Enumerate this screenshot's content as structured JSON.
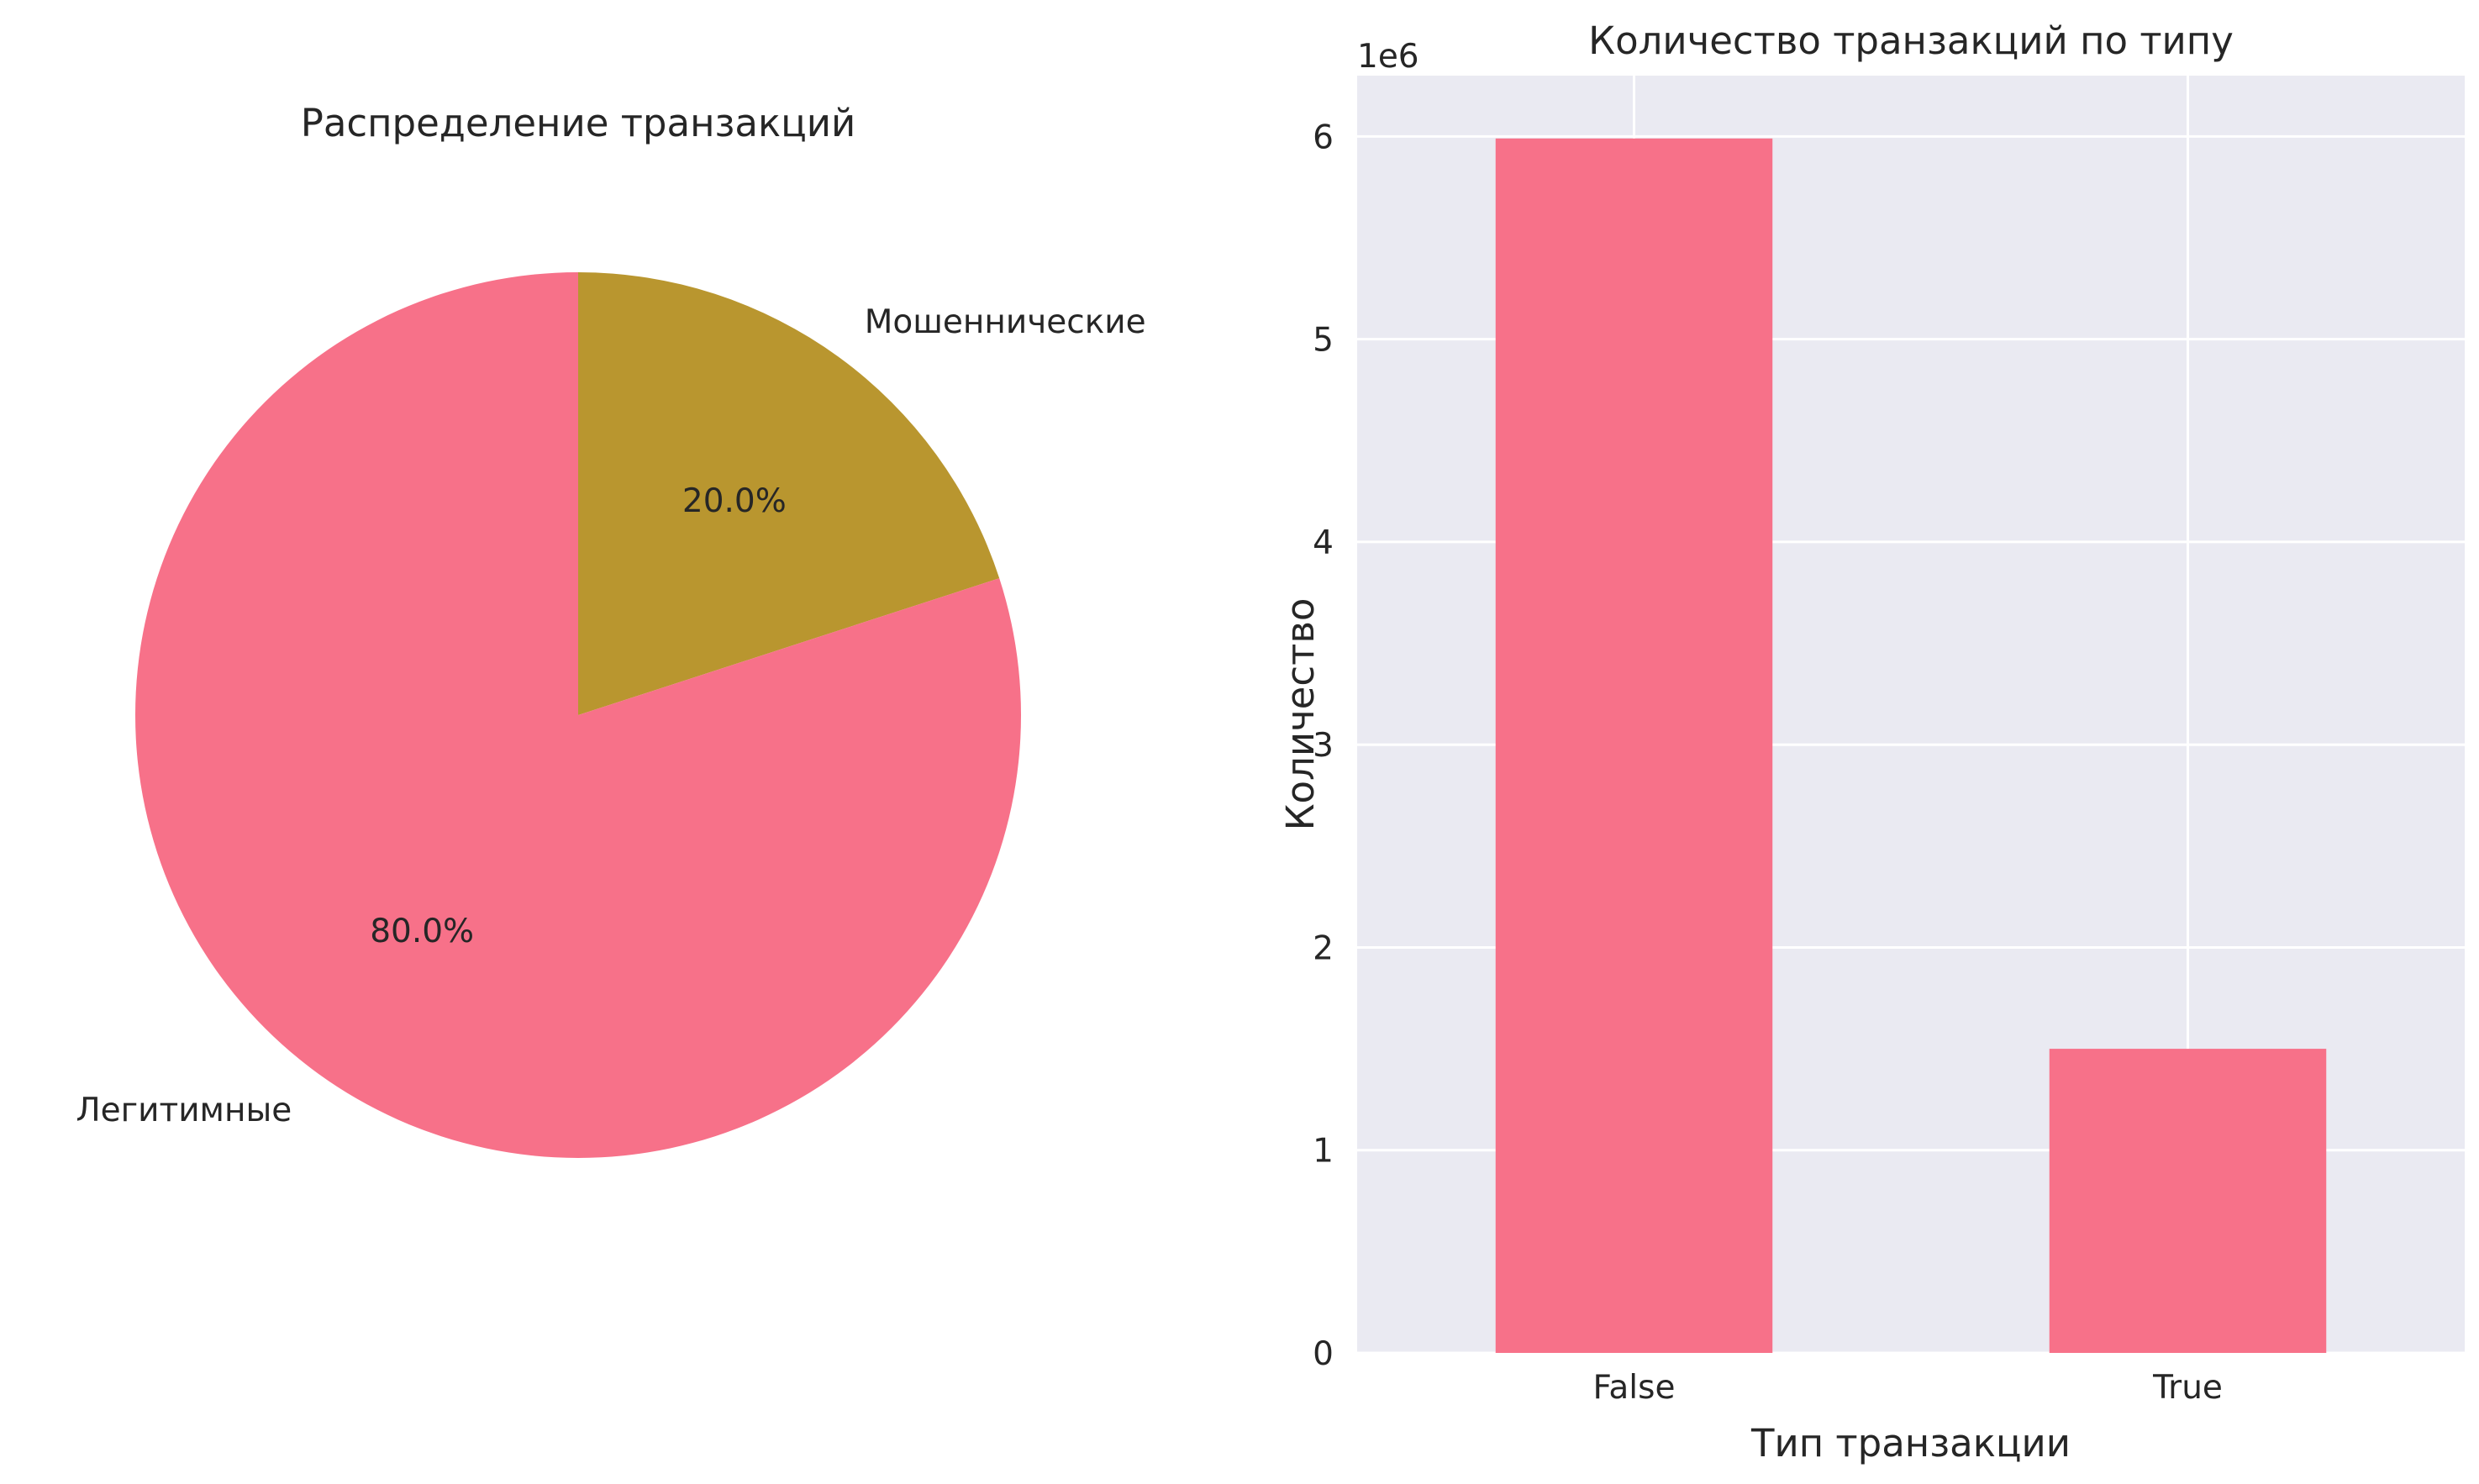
{
  "chart_data": [
    {
      "type": "pie",
      "title": "Распределение транзакций",
      "start_angle": 90,
      "direction": "clockwise",
      "slices": [
        {
          "label": "Мошеннические",
          "value": 20.0,
          "pct_label": "20.0%",
          "color": "#b9962f"
        },
        {
          "label": "Легитимные",
          "value": 80.0,
          "pct_label": "80.0%",
          "color": "#f77189"
        }
      ]
    },
    {
      "type": "bar",
      "title": "Количество транзакций по типу",
      "xlabel": "Тип транзакции",
      "ylabel": "Количество",
      "categories": [
        "False",
        "True"
      ],
      "values": [
        5990000,
        1500000
      ],
      "bar_color": "#f77189",
      "ylim": [
        0,
        6300000
      ],
      "yticks": [
        0,
        1000000,
        2000000,
        3000000,
        4000000,
        5000000,
        6000000
      ],
      "ytick_labels": [
        "0",
        "1",
        "2",
        "3",
        "4",
        "5",
        "6"
      ],
      "offset_label": "1e6",
      "grid": true,
      "background": "#eaeaf2"
    }
  ]
}
